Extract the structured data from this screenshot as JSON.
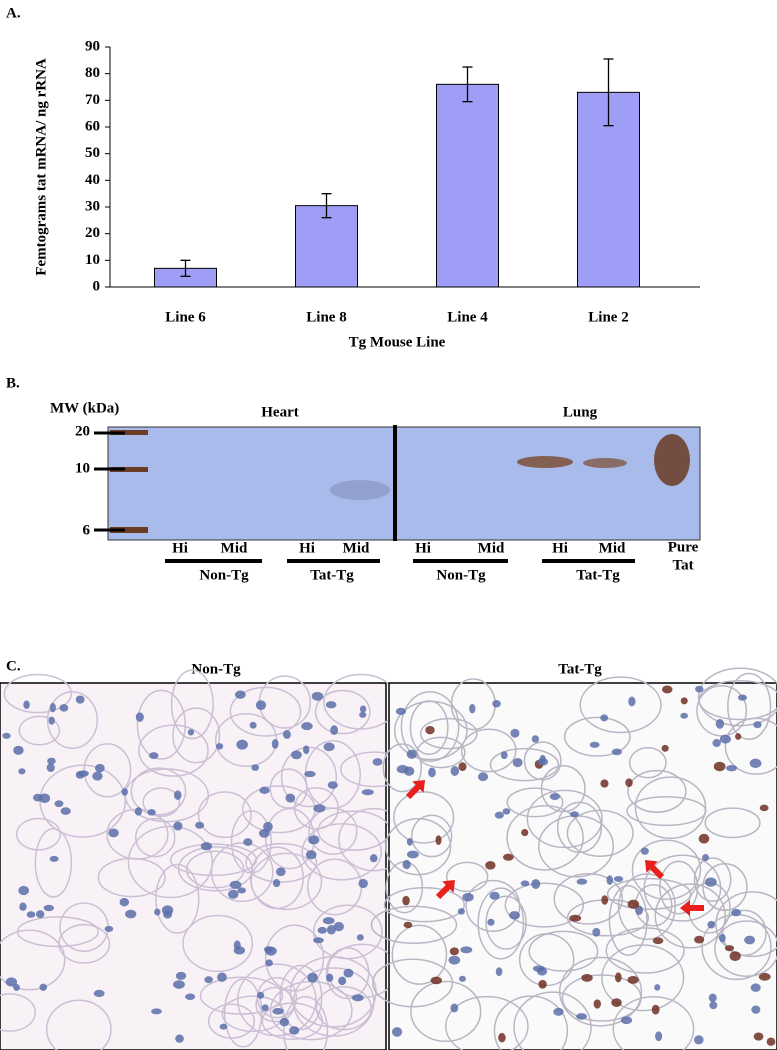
{
  "chart_data": {
    "type": "bar",
    "panel_label": "A.",
    "y_label": "Femtograms tat mRNA/ ng rRNA",
    "x_label": "Tg Mouse Line",
    "categories": [
      "Line 6",
      "Line 8",
      "Line 4",
      "Line 2"
    ],
    "values": [
      7,
      30.5,
      76,
      73
    ],
    "errors": [
      3,
      4.5,
      6.5,
      12.5
    ],
    "color": "#9e9ef7",
    "ylim": [
      0,
      90
    ],
    "yticks": [
      0,
      10,
      20,
      30,
      40,
      50,
      60,
      70,
      80,
      90
    ]
  },
  "blot": {
    "panel_label": "B.",
    "mw_label": "MW (kDa)",
    "tissues": [
      "Heart",
      "Lung"
    ],
    "markers": [
      "20",
      "10",
      "6"
    ],
    "lanes": [
      "Hi",
      "Mid",
      "Hi",
      "Mid",
      "Hi",
      "Mid",
      "Hi",
      "Mid"
    ],
    "groups": [
      "Non-Tg",
      "Tat-Tg",
      "Non-Tg",
      "Tat-Tg"
    ],
    "pure": [
      "Pure",
      "Tat"
    ]
  },
  "histology": {
    "panel_label": "C.",
    "titles": [
      "Non-Tg",
      "Tat-Tg"
    ]
  }
}
